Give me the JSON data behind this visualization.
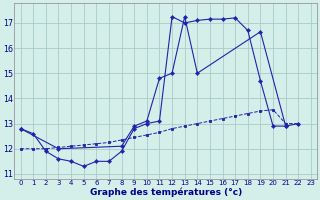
{
  "title": "Graphe des températures (°c)",
  "bg_color": "#d4eee9",
  "grid_color": "#a8ccc7",
  "line_color": "#2222aa",
  "xlim": [
    0,
    23
  ],
  "ylim": [
    10.8,
    17.8
  ],
  "yticks": [
    11,
    12,
    13,
    14,
    15,
    16,
    17
  ],
  "xtick_labels": [
    "0",
    "1",
    "2",
    "3",
    "4",
    "5",
    "6",
    "7",
    "8",
    "9",
    "10",
    "11",
    "12",
    "13",
    "14",
    "15",
    "16",
    "17",
    "18",
    "19",
    "20",
    "21",
    "22",
    "23"
  ],
  "line1_x": [
    0,
    1,
    2,
    3,
    4,
    5,
    6,
    7,
    8,
    9,
    10,
    11,
    12,
    13,
    14,
    15,
    16,
    17,
    18,
    19,
    20,
    21
  ],
  "line1_y": [
    12.8,
    12.6,
    11.9,
    11.6,
    11.5,
    11.3,
    11.5,
    11.5,
    11.9,
    12.8,
    13.0,
    13.1,
    17.25,
    17.0,
    17.1,
    17.15,
    17.15,
    17.2,
    16.7,
    14.7,
    12.9,
    12.9
  ],
  "line2_x": [
    0,
    3,
    8,
    9,
    10,
    11,
    12,
    13,
    14,
    19,
    21,
    22
  ],
  "line2_y": [
    12.8,
    12.0,
    12.1,
    12.9,
    13.1,
    14.8,
    15.0,
    17.25,
    15.0,
    16.65,
    12.9,
    13.0
  ],
  "line3_x": [
    0,
    1,
    2,
    3,
    4,
    5,
    6,
    7,
    8,
    9,
    10,
    11,
    12,
    13,
    14,
    15,
    16,
    17,
    18,
    19,
    20,
    21,
    22
  ],
  "line3_y": [
    12.0,
    12.0,
    12.0,
    12.05,
    12.1,
    12.15,
    12.2,
    12.25,
    12.35,
    12.45,
    12.55,
    12.65,
    12.8,
    12.9,
    13.0,
    13.1,
    13.2,
    13.3,
    13.4,
    13.5,
    13.55,
    13.0,
    13.0
  ]
}
